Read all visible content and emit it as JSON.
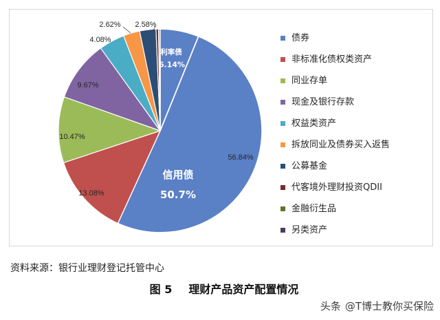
{
  "chart_data": {
    "type": "pie",
    "legend": "right",
    "slices": [
      {
        "name": "债券",
        "value": 56.84,
        "label": "56.84%",
        "color": "#5A80C6",
        "parts": [
          {
            "name": "利率债",
            "value": 6.14,
            "label": "6.14%"
          },
          {
            "name": "信用债",
            "value": 50.7,
            "label": "50.7%"
          }
        ]
      },
      {
        "name": "非标准化债权类资产",
        "value": 13.08,
        "label": "13.08%",
        "color": "#C0504D"
      },
      {
        "name": "同业存单",
        "value": 10.47,
        "label": "10.47%",
        "color": "#9BBB59"
      },
      {
        "name": "现金及银行存款",
        "value": 9.67,
        "label": "9.67%",
        "color": "#8064A2"
      },
      {
        "name": "权益类资产",
        "value": 4.08,
        "label": "4.08%",
        "color": "#4BACC6"
      },
      {
        "name": "拆放同业及债券买入返售",
        "value": 2.62,
        "label": "2.62%",
        "color": "#F79646"
      },
      {
        "name": "公募基金",
        "value": 2.58,
        "label": "2.58%",
        "color": "#2C4D75"
      },
      {
        "name": "代客境外理财投资QDII",
        "value": 0.4,
        "color": "#772C2A"
      },
      {
        "name": "金融衍生品",
        "value": 0.06,
        "color": "#5F7530"
      },
      {
        "name": "另类资产",
        "value": 0.2,
        "color": "#4D3B62"
      }
    ]
  },
  "source": "资料来源：银行业理财登记托管中心",
  "caption": {
    "number": "图 5",
    "title": "理财产品资产配置情况"
  },
  "watermark": {
    "brand": "头条",
    "account": "@T博士教你买保险"
  }
}
